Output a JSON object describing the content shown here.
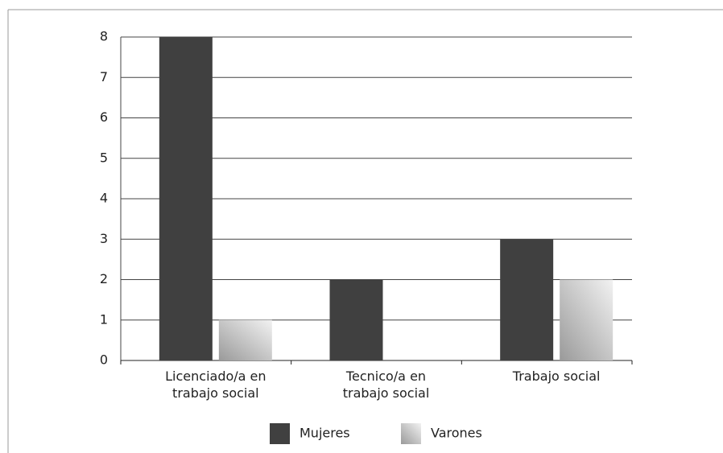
{
  "chart_data": {
    "type": "bar",
    "categories": [
      "Licenciado/a en trabajo social",
      "Tecnico/a en trabajo social",
      "Trabajo social"
    ],
    "series": [
      {
        "name": "Mujeres",
        "color": "#404040",
        "values": [
          8,
          2,
          3
        ]
      },
      {
        "name": "Varones",
        "color": "#9a9a9a",
        "values": [
          1,
          0,
          2
        ]
      }
    ],
    "ylim": [
      0,
      8
    ],
    "yticks": [
      0,
      1,
      2,
      3,
      4,
      5,
      6,
      7,
      8
    ],
    "grid": true,
    "legend": "bottom"
  }
}
